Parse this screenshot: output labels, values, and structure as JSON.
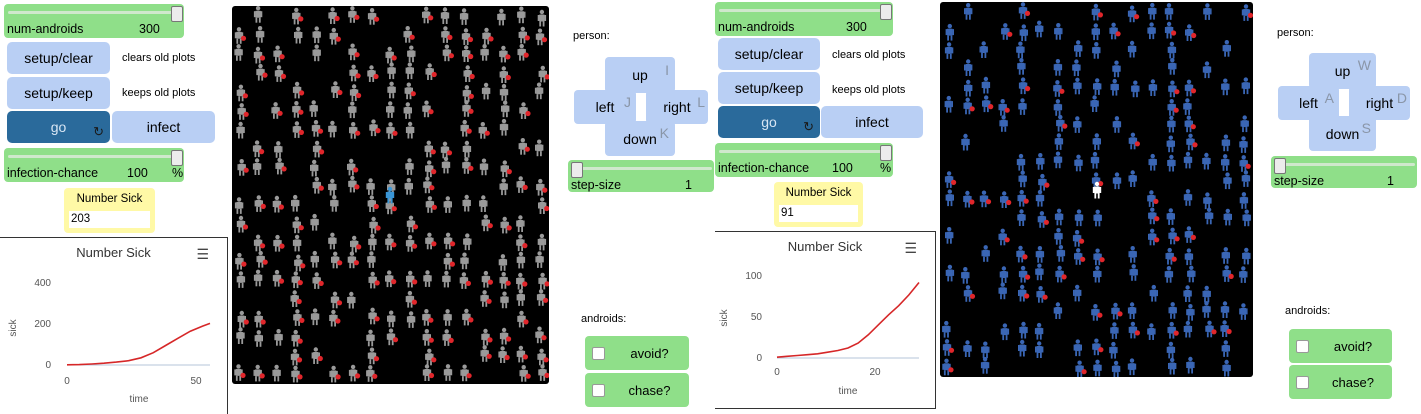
{
  "panel1": {
    "num_androids": {
      "label": "num-androids",
      "value": "300"
    },
    "setup_clear": "setup/clear",
    "setup_clear_note": "clears old plots",
    "setup_keep": "setup/keep",
    "setup_keep_note": "keeps old plots",
    "go": "go",
    "infect": "infect",
    "infection_chance": {
      "label": "infection-chance",
      "value": "100",
      "unit": "%"
    },
    "monitor": {
      "label": "Number Sick",
      "value": "203"
    },
    "plot": {
      "title": "Number Sick",
      "ylabel": "sick",
      "xlabel": "time",
      "yticks": [
        "400",
        "200",
        "0"
      ],
      "xticks": [
        "0",
        "50"
      ]
    },
    "person_label": "person:",
    "dpad": {
      "up": "up",
      "up_key": "I",
      "left": "left",
      "left_key": "J",
      "right": "right",
      "right_key": "L",
      "down": "down",
      "down_key": "K"
    },
    "step_size": {
      "label": "step-size",
      "value": "1"
    },
    "androids_label": "androids:",
    "avoid": "avoid?",
    "chase": "chase?"
  },
  "panel2": {
    "num_androids": {
      "label": "num-androids",
      "value": "300"
    },
    "setup_clear": "setup/clear",
    "setup_clear_note": "clears old plots",
    "setup_keep": "setup/keep",
    "setup_keep_note": "keeps old plots",
    "go": "go",
    "infect": "infect",
    "infection_chance": {
      "label": "infection-chance",
      "value": "100",
      "unit": "%"
    },
    "monitor": {
      "label": "Number Sick",
      "value": "91"
    },
    "plot": {
      "title": "Number Sick",
      "ylabel": "sick",
      "xlabel": "time",
      "yticks": [
        "100",
        "50",
        "0"
      ],
      "xticks": [
        "0",
        "20"
      ]
    },
    "person_label": "person:",
    "dpad": {
      "up": "up",
      "up_key": "W",
      "left": "left",
      "left_key": "A",
      "right": "right",
      "right_key": "D",
      "down": "down",
      "down_key": "S"
    },
    "step_size": {
      "label": "step-size",
      "value": "1"
    },
    "androids_label": "androids:",
    "avoid": "avoid?",
    "chase": "chase?"
  },
  "chart_data": [
    {
      "type": "line",
      "title": "Number Sick",
      "xlabel": "time",
      "ylabel": "sick",
      "xlim": [
        0,
        58
      ],
      "ylim": [
        0,
        400
      ],
      "series": [
        {
          "color": "#d62728",
          "x": [
            0,
            5,
            10,
            15,
            20,
            25,
            30,
            35,
            40,
            45,
            50,
            55,
            58
          ],
          "y": [
            1,
            2,
            5,
            9,
            14,
            21,
            35,
            60,
            95,
            130,
            165,
            190,
            203
          ]
        }
      ]
    },
    {
      "type": "line",
      "title": "Number Sick",
      "xlabel": "time",
      "ylabel": "sick",
      "xlim": [
        0,
        28
      ],
      "ylim": [
        0,
        100
      ],
      "series": [
        {
          "color": "#d62728",
          "x": [
            0,
            2,
            4,
            6,
            8,
            10,
            12,
            14,
            16,
            18,
            20,
            22,
            24,
            26,
            28
          ],
          "y": [
            1,
            2,
            3,
            4,
            5,
            7,
            9,
            12,
            18,
            28,
            40,
            52,
            63,
            76,
            91
          ]
        }
      ]
    }
  ],
  "colors": {
    "slider": "#8fdf89",
    "button": "#b9cff4",
    "go_button": "#2a6a9b",
    "monitor": "#fff9a6",
    "world_bg": "#000000",
    "healthy_android_p1": "#9a9a9a",
    "healthy_android_p2": "#3a66b5",
    "sick_marker": "#e0262b",
    "player_p1": "#3a96d6",
    "player_p2": "#ffffff"
  }
}
